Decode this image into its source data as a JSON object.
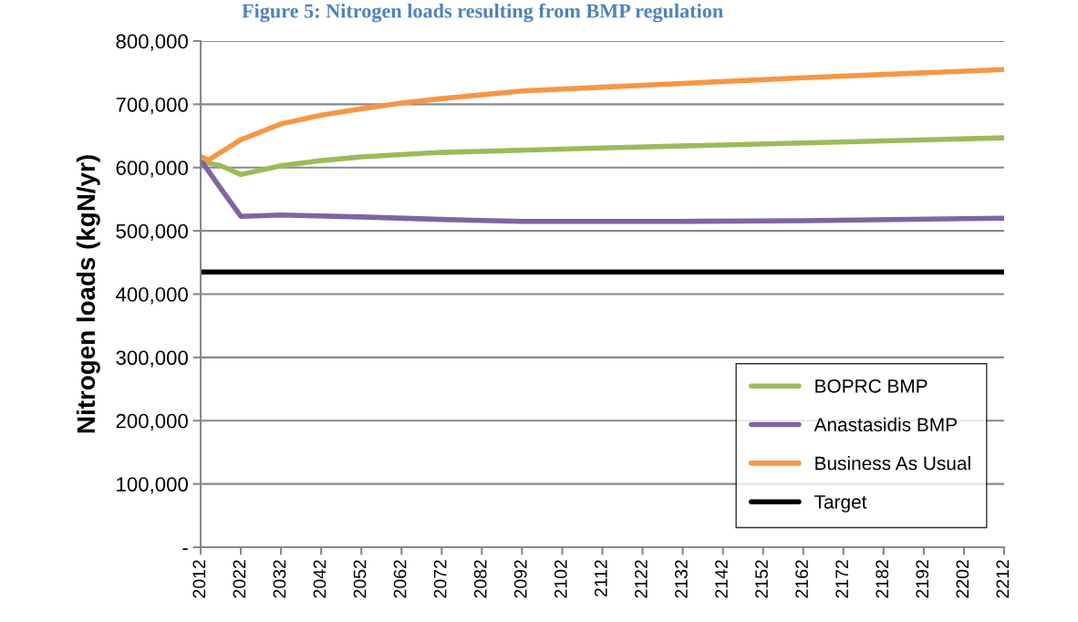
{
  "chart_data": {
    "type": "line",
    "title": "Figure 5: Nitrogen loads resulting from BMP regulation",
    "ylabel": "Nitrogen loads (kgN/yr)",
    "series": [
      {
        "name": "BOPRC BMP",
        "color": "#9bbb59",
        "x": [
          2012,
          2014,
          2017,
          2022,
          2032,
          2042,
          2052,
          2072,
          2112,
          2162,
          2212
        ],
        "values": [
          617000,
          607000,
          603000,
          589000,
          603000,
          611000,
          617000,
          624000,
          631000,
          639000,
          647000
        ]
      },
      {
        "name": "Anastasidis BMP",
        "color": "#8064a2",
        "x": [
          2012,
          2014,
          2017,
          2022,
          2032,
          2052,
          2072,
          2092,
          2112,
          2132,
          2162,
          2212
        ],
        "values": [
          612000,
          594000,
          567000,
          523000,
          525000,
          522000,
          518000,
          515000,
          515000,
          515000,
          516000,
          520000
        ]
      },
      {
        "name": "Business As Usual",
        "color": "#f79646",
        "x": [
          2012,
          2014,
          2022,
          2032,
          2042,
          2052,
          2062,
          2072,
          2092,
          2112,
          2162,
          2212
        ],
        "values": [
          617000,
          612000,
          644000,
          669000,
          683000,
          693000,
          702000,
          709000,
          721000,
          727000,
          742000,
          755000
        ]
      },
      {
        "name": "Target",
        "color": "#000000",
        "x": [
          2012,
          2212
        ],
        "values": [
          435000,
          435000
        ]
      }
    ],
    "xlim": [
      2012,
      2212
    ],
    "xticks": [
      2012,
      2022,
      2032,
      2042,
      2052,
      2062,
      2072,
      2082,
      2092,
      2102,
      2112,
      2122,
      2132,
      2142,
      2152,
      2162,
      2172,
      2182,
      2192,
      2202,
      2212
    ],
    "ylim": [
      0,
      800000
    ],
    "yticks": [
      {
        "value": 0,
        "label": "-"
      },
      {
        "value": 100000,
        "label": "100,000"
      },
      {
        "value": 200000,
        "label": "200,000"
      },
      {
        "value": 300000,
        "label": "300,000"
      },
      {
        "value": 400000,
        "label": "400,000"
      },
      {
        "value": 500000,
        "label": "500,000"
      },
      {
        "value": 600000,
        "label": "600,000"
      },
      {
        "value": 700000,
        "label": "700,000"
      },
      {
        "value": 800000,
        "label": "800,000"
      }
    ],
    "grid": "y",
    "legend": "bottom right",
    "marker": "none",
    "line_style": "solid"
  }
}
